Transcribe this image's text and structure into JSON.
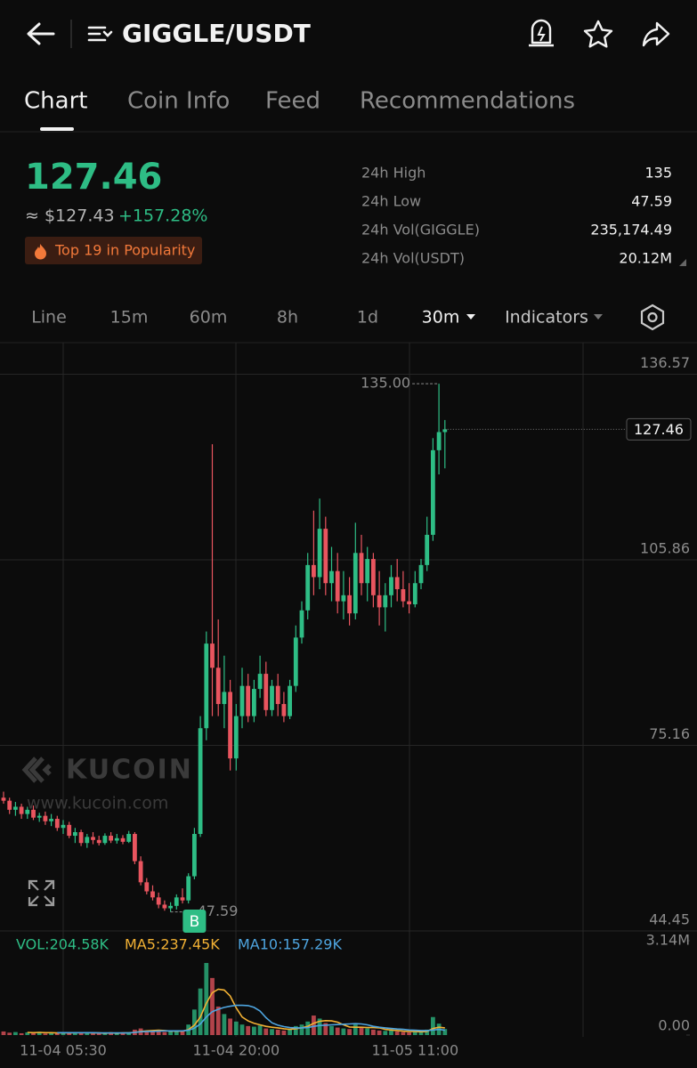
{
  "header": {
    "title": "GIGGLE/USDT"
  },
  "tabs": [
    "Chart",
    "Coin Info",
    "Feed",
    "Recommendations"
  ],
  "price": {
    "last": "127.46",
    "usd": "≈ $127.43",
    "change": "+157.28%",
    "badge": "Top 19 in Popularity"
  },
  "stats": [
    {
      "label": "24h High",
      "value": "135"
    },
    {
      "label": "24h Low",
      "value": "47.59"
    },
    {
      "label": "24h Vol(GIGGLE)",
      "value": "235,174.49"
    },
    {
      "label": "24h Vol(USDT)",
      "value": "20.12M"
    }
  ],
  "intervals": [
    "Line",
    "15m",
    "60m",
    "8h",
    "1d",
    "30m",
    "Indicators"
  ],
  "chart_data": [
    {
      "type": "candlestick",
      "watermark": "KUCOIN",
      "watermark_url": "www.kucoin.com",
      "trade_marker": "B",
      "up_color": "#2ebd85",
      "down_color": "#e9555f",
      "grid": true,
      "categories": [
        null,
        null,
        null,
        null,
        null,
        null,
        null,
        null,
        null,
        null,
        "11-04 05:30",
        null,
        null,
        null,
        null,
        null,
        null,
        null,
        null,
        null,
        null,
        null,
        null,
        null,
        null,
        null,
        null,
        null,
        null,
        null,
        null,
        null,
        null,
        null,
        null,
        null,
        null,
        null,
        null,
        "11-04 20:00",
        null,
        null,
        null,
        null,
        null,
        null,
        null,
        null,
        null,
        null,
        null,
        null,
        null,
        null,
        null,
        null,
        null,
        null,
        null,
        null,
        null,
        null,
        null,
        null,
        null,
        null,
        null,
        null,
        null,
        "11-05 11:00",
        null,
        null,
        null,
        null,
        null
      ],
      "open": [
        66.5,
        66.0,
        64.5,
        65.0,
        63.8,
        64.5,
        63.2,
        63.5,
        62.6,
        63.0,
        61.5,
        62.0,
        60.2,
        60.8,
        59.0,
        60.0,
        59.5,
        59.0,
        60.2,
        59.4,
        59.8,
        59.2,
        60.5,
        56.0,
        52.5,
        51.0,
        50.0,
        48.8,
        48.2,
        48.6,
        50.0,
        49.5,
        53.5,
        60.5,
        78.0,
        92.0,
        88,
        82,
        84,
        73,
        80,
        85,
        80,
        84.5,
        87,
        81,
        85,
        82,
        80,
        85,
        93,
        97.5,
        105,
        103,
        111,
        102,
        104,
        99,
        100,
        97,
        107,
        102,
        106,
        100,
        98,
        100,
        103,
        101,
        99,
        98.5,
        102,
        105,
        110,
        124,
        127
      ],
      "high": [
        67.5,
        66.5,
        65.8,
        65.5,
        65.0,
        65.2,
        64.0,
        64.2,
        63.8,
        63.5,
        62.8,
        62.5,
        61.5,
        61.2,
        60.5,
        60.8,
        60.2,
        60.6,
        60.8,
        60.5,
        60.3,
        61.0,
        60.8,
        56.8,
        53.2,
        52.0,
        50.8,
        49.5,
        49.2,
        50.5,
        51.5,
        54.0,
        61.5,
        80.0,
        94.0,
        125.0,
        96,
        90,
        86,
        82,
        88,
        87,
        86,
        90,
        89,
        86,
        87,
        84,
        86,
        95,
        99,
        107,
        114,
        116,
        113,
        108,
        107,
        104,
        103,
        112,
        110,
        108,
        107,
        104,
        102,
        105,
        106,
        104,
        102,
        104,
        106,
        113,
        126,
        135,
        129
      ],
      "low": [
        65.5,
        63.8,
        63.5,
        63.0,
        63.0,
        62.8,
        62.5,
        62.0,
        61.8,
        61.0,
        60.5,
        59.8,
        59.0,
        58.5,
        58.2,
        58.8,
        58.6,
        58.7,
        59.0,
        58.9,
        58.8,
        59.0,
        55.5,
        52.0,
        50.5,
        49.5,
        48.2,
        47.8,
        47.59,
        48.0,
        49.0,
        49.0,
        53.0,
        60.0,
        76.0,
        80.0,
        80,
        78,
        71,
        71,
        78,
        79,
        79,
        83,
        80,
        80,
        80,
        79,
        79.5,
        84,
        92,
        96,
        100,
        101,
        100,
        99,
        97,
        96,
        95,
        96,
        100,
        99,
        98,
        95,
        94,
        98,
        99,
        98,
        97,
        98,
        101,
        104,
        109,
        120,
        121
      ],
      "close": [
        66.0,
        64.5,
        65.0,
        63.8,
        64.5,
        63.2,
        63.5,
        62.6,
        63.0,
        61.5,
        62.0,
        60.2,
        60.8,
        59.0,
        60.0,
        59.5,
        59.0,
        60.2,
        59.4,
        59.8,
        59.2,
        60.5,
        56.0,
        52.5,
        51.0,
        50.0,
        48.8,
        48.2,
        48.6,
        50.0,
        49.5,
        53.5,
        60.5,
        78.0,
        92.0,
        88.0,
        82,
        84,
        73,
        80,
        85,
        80,
        84.5,
        87,
        81,
        85,
        82,
        80,
        85,
        93,
        97.5,
        105,
        103,
        111,
        102,
        104,
        99,
        100,
        97,
        107,
        102,
        106,
        100,
        98,
        100,
        103,
        101,
        99,
        98.5,
        102,
        105,
        110,
        124,
        127,
        127.46
      ],
      "ylim": [
        44.45,
        141.8
      ],
      "yticks": [
        44.45,
        75.16,
        105.86,
        136.57
      ],
      "annotations": {
        "high": {
          "value": 135,
          "label": "135.00"
        },
        "low": {
          "value": 47.59,
          "label": "47.59"
        },
        "last": {
          "value": 127.46,
          "label": "127.46"
        }
      }
    },
    {
      "type": "bar",
      "ylim": [
        0,
        3.14
      ],
      "yticks": [
        {
          "value": 0,
          "label": "0.00"
        },
        {
          "value": 3.14,
          "label": "3.14M"
        }
      ],
      "series": [
        {
          "name": "VOL:204.58K",
          "color": "#2ebd85",
          "values": [
            0.12,
            0.08,
            0.1,
            0.06,
            0.09,
            0.07,
            0.11,
            0.05,
            0.08,
            0.06,
            0.1,
            0.07,
            0.09,
            0.06,
            0.08,
            0.05,
            0.07,
            0.06,
            0.09,
            0.05,
            0.07,
            0.06,
            0.18,
            0.22,
            0.15,
            0.12,
            0.14,
            0.1,
            0.16,
            0.12,
            0.15,
            0.35,
            0.85,
            1.55,
            2.4,
            1.9,
            0.95,
            0.7,
            0.55,
            0.45,
            0.35,
            0.3,
            0.28,
            0.32,
            0.22,
            0.2,
            0.18,
            0.15,
            0.2,
            0.3,
            0.35,
            0.45,
            0.65,
            0.55,
            0.4,
            0.3,
            0.25,
            0.22,
            0.2,
            0.35,
            0.28,
            0.22,
            0.18,
            0.15,
            0.14,
            0.16,
            0.12,
            0.1,
            0.09,
            0.11,
            0.12,
            0.18,
            0.6,
            0.38,
            0.2
          ]
        },
        {
          "name": "MA5:237.45K",
          "color": "#f2b134",
          "values": [
            null,
            null,
            null,
            null,
            0.09,
            0.08,
            0.09,
            0.08,
            0.08,
            0.07,
            0.08,
            0.07,
            0.08,
            0.08,
            0.08,
            0.07,
            0.07,
            0.06,
            0.07,
            0.06,
            0.07,
            0.07,
            0.09,
            0.12,
            0.14,
            0.15,
            0.16,
            0.15,
            0.13,
            0.13,
            0.13,
            0.18,
            0.33,
            0.6,
            1.06,
            1.41,
            1.53,
            1.5,
            1.3,
            0.91,
            0.6,
            0.47,
            0.39,
            0.34,
            0.29,
            0.26,
            0.24,
            0.21,
            0.19,
            0.21,
            0.24,
            0.29,
            0.39,
            0.46,
            0.48,
            0.47,
            0.43,
            0.34,
            0.27,
            0.26,
            0.26,
            0.25,
            0.25,
            0.24,
            0.19,
            0.17,
            0.15,
            0.13,
            0.12,
            0.12,
            0.11,
            0.12,
            0.22,
            0.26,
            0.24
          ]
        },
        {
          "name": "MA10:157.29K",
          "color": "#4ea5e0",
          "values": [
            null,
            null,
            null,
            null,
            null,
            null,
            null,
            null,
            null,
            0.08,
            0.08,
            0.08,
            0.08,
            0.08,
            0.08,
            0.08,
            0.07,
            0.07,
            0.07,
            0.07,
            0.07,
            0.07,
            0.09,
            0.11,
            0.12,
            0.12,
            0.13,
            0.14,
            0.14,
            0.14,
            0.14,
            0.16,
            0.23,
            0.37,
            0.6,
            0.78,
            0.86,
            0.92,
            0.96,
            0.99,
            0.99,
            0.98,
            0.92,
            0.8,
            0.58,
            0.41,
            0.33,
            0.28,
            0.25,
            0.24,
            0.24,
            0.25,
            0.29,
            0.32,
            0.33,
            0.34,
            0.35,
            0.36,
            0.37,
            0.38,
            0.37,
            0.34,
            0.29,
            0.26,
            0.24,
            0.22,
            0.2,
            0.19,
            0.17,
            0.16,
            0.15,
            0.15,
            0.17,
            0.19,
            0.16
          ]
        }
      ]
    }
  ]
}
